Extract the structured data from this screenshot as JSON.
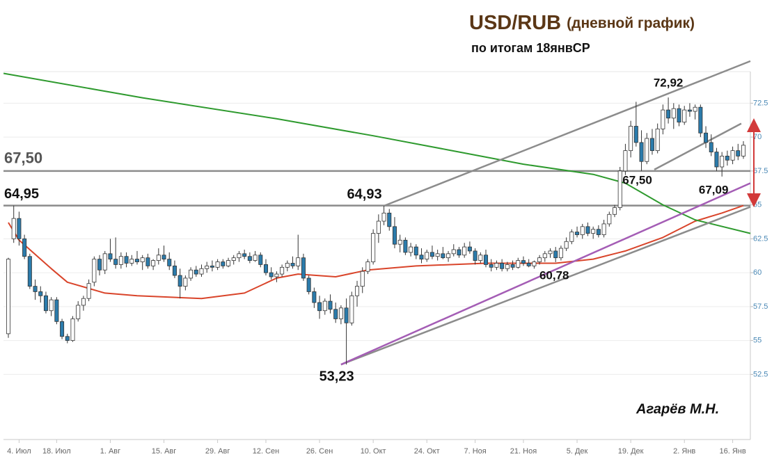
{
  "chart_data": {
    "type": "candlestick",
    "title": "USD/RUB",
    "title_suffix": "(дневной график)",
    "subtitle": "по итогам 18янвСР",
    "author": "Агарёв М.Н.",
    "up_color": "#ffffff",
    "down_color": "#2b7bab",
    "ylim": [
      47.7,
      75.8
    ],
    "yticks": [
      52.5,
      55,
      57.5,
      60,
      62.5,
      65,
      67.5,
      70,
      72.5
    ],
    "grid": true,
    "categories": [
      null,
      null,
      "4. Июл",
      null,
      null,
      null,
      null,
      null,
      null,
      "18. Июл",
      null,
      null,
      null,
      null,
      null,
      null,
      null,
      null,
      null,
      "1. Авг",
      null,
      null,
      null,
      null,
      null,
      null,
      null,
      null,
      null,
      "15. Авг",
      null,
      null,
      null,
      null,
      null,
      null,
      null,
      null,
      null,
      "29. Авг",
      null,
      null,
      null,
      null,
      null,
      null,
      null,
      null,
      "12. Сен",
      null,
      null,
      null,
      null,
      null,
      null,
      null,
      null,
      null,
      "26. Сен",
      null,
      null,
      null,
      null,
      null,
      null,
      null,
      null,
      null,
      "10. Окт",
      null,
      null,
      null,
      null,
      null,
      null,
      null,
      null,
      null,
      "24. Окт",
      null,
      null,
      null,
      null,
      null,
      null,
      null,
      null,
      "7. Ноя",
      null,
      null,
      null,
      null,
      null,
      null,
      null,
      null,
      "21. Ноя",
      null,
      null,
      null,
      null,
      null,
      null,
      null,
      null,
      null,
      "5. Дек",
      null,
      null,
      null,
      null,
      null,
      null,
      null,
      null,
      null,
      "19. Дек",
      null,
      null,
      null,
      null,
      null,
      null,
      null,
      null,
      null,
      "2. Янв",
      null,
      null,
      null,
      null,
      null,
      null,
      null,
      null,
      "16. Янв",
      null,
      null
    ],
    "ohlc": [
      [
        55.5,
        61.1,
        55.2,
        61.0
      ],
      [
        62.5,
        64.95,
        62.2,
        64.0
      ],
      [
        64.0,
        64.5,
        62.0,
        62.5
      ],
      [
        62.5,
        62.8,
        61.0,
        61.2
      ],
      [
        61.2,
        61.4,
        58.8,
        59.0
      ],
      [
        59.0,
        59.5,
        58.0,
        58.6
      ],
      [
        58.6,
        59.0,
        57.8,
        58.3
      ],
      [
        58.3,
        58.6,
        57.0,
        57.2
      ],
      [
        57.2,
        58.2,
        56.8,
        58.0
      ],
      [
        58.0,
        58.2,
        56.2,
        56.4
      ],
      [
        56.4,
        56.6,
        55.1,
        55.3
      ],
      [
        55.3,
        55.5,
        54.8,
        55.0
      ],
      [
        55.0,
        56.8,
        54.9,
        56.6
      ],
      [
        56.6,
        57.9,
        56.4,
        57.6
      ],
      [
        57.6,
        58.3,
        57.2,
        58.1
      ],
      [
        58.1,
        59.5,
        57.9,
        59.2
      ],
      [
        59.3,
        61.2,
        59.0,
        61.0
      ],
      [
        61.0,
        61.3,
        59.8,
        60.2
      ],
      [
        60.2,
        61.6,
        59.9,
        61.4
      ],
      [
        61.4,
        62.5,
        60.8,
        61.0
      ],
      [
        61.0,
        62.6,
        60.3,
        60.6
      ],
      [
        60.6,
        61.5,
        60.3,
        61.2
      ],
      [
        61.2,
        61.5,
        60.4,
        60.7
      ],
      [
        60.7,
        61.3,
        60.5,
        61.0
      ],
      [
        61.0,
        61.6,
        60.6,
        60.8
      ],
      [
        60.8,
        61.3,
        60.2,
        61.1
      ],
      [
        61.1,
        61.4,
        60.3,
        60.5
      ],
      [
        60.5,
        61.0,
        60.2,
        60.9
      ],
      [
        60.9,
        61.8,
        60.6,
        61.3
      ],
      [
        61.3,
        62.0,
        60.8,
        61.0
      ],
      [
        61.0,
        61.5,
        60.2,
        60.5
      ],
      [
        60.5,
        60.9,
        59.6,
        59.8
      ],
      [
        59.8,
        60.3,
        58.1,
        59.0
      ],
      [
        59.0,
        59.8,
        58.7,
        59.6
      ],
      [
        59.6,
        60.4,
        59.4,
        60.2
      ],
      [
        60.2,
        60.5,
        59.7,
        59.9
      ],
      [
        59.9,
        60.6,
        59.7,
        60.3
      ],
      [
        60.3,
        60.8,
        60.0,
        60.5
      ],
      [
        60.5,
        60.9,
        60.1,
        60.4
      ],
      [
        60.4,
        61.0,
        60.2,
        60.8
      ],
      [
        60.8,
        61.0,
        60.3,
        60.5
      ],
      [
        60.5,
        61.1,
        60.4,
        60.9
      ],
      [
        60.9,
        61.3,
        60.6,
        61.1
      ],
      [
        61.1,
        61.6,
        60.8,
        61.4
      ],
      [
        61.4,
        61.7,
        61.0,
        61.2
      ],
      [
        61.2,
        61.5,
        60.7,
        60.9
      ],
      [
        60.9,
        61.6,
        60.8,
        61.3
      ],
      [
        61.3,
        61.5,
        60.4,
        60.6
      ],
      [
        60.6,
        61.0,
        59.8,
        60.0
      ],
      [
        60.0,
        60.4,
        59.5,
        59.7
      ],
      [
        59.7,
        60.1,
        59.3,
        59.9
      ],
      [
        59.9,
        60.6,
        59.7,
        60.4
      ],
      [
        60.4,
        60.9,
        60.1,
        60.7
      ],
      [
        60.7,
        61.2,
        60.3,
        60.5
      ],
      [
        60.5,
        62.8,
        60.2,
        61.1
      ],
      [
        61.1,
        61.4,
        59.4,
        59.6
      ],
      [
        59.6,
        59.8,
        58.4,
        58.6
      ],
      [
        58.6,
        58.9,
        57.4,
        57.8
      ],
      [
        57.8,
        58.3,
        56.6,
        57.2
      ],
      [
        57.2,
        58.1,
        56.9,
        57.9
      ],
      [
        57.9,
        58.4,
        57.0,
        57.3
      ],
      [
        57.3,
        57.8,
        56.3,
        56.6
      ],
      [
        56.6,
        57.6,
        56.2,
        57.4
      ],
      [
        57.4,
        58.1,
        53.23,
        56.3
      ],
      [
        56.3,
        58.6,
        56.1,
        58.3
      ],
      [
        58.3,
        59.4,
        57.5,
        59.0
      ],
      [
        59.0,
        60.4,
        58.5,
        60.1
      ],
      [
        60.1,
        61.0,
        59.9,
        60.8
      ],
      [
        60.8,
        63.2,
        60.6,
        62.9
      ],
      [
        62.9,
        64.3,
        62.2,
        63.8
      ],
      [
        63.8,
        64.93,
        63.5,
        64.4
      ],
      [
        64.4,
        64.7,
        63.1,
        63.4
      ],
      [
        63.4,
        64.1,
        61.8,
        62.1
      ],
      [
        62.1,
        62.8,
        61.5,
        62.4
      ],
      [
        62.4,
        62.6,
        61.3,
        61.5
      ],
      [
        61.5,
        62.2,
        61.2,
        61.9
      ],
      [
        61.9,
        62.1,
        61.0,
        61.3
      ],
      [
        61.3,
        61.8,
        60.7,
        61.0
      ],
      [
        61.0,
        61.7,
        60.8,
        61.5
      ],
      [
        61.5,
        62.0,
        61.0,
        61.2
      ],
      [
        61.2,
        61.7,
        60.9,
        61.4
      ],
      [
        61.4,
        61.9,
        61.0,
        61.1
      ],
      [
        61.1,
        61.6,
        60.8,
        61.4
      ],
      [
        61.4,
        62.1,
        61.2,
        61.7
      ],
      [
        61.7,
        61.9,
        61.1,
        61.3
      ],
      [
        61.3,
        62.2,
        61.1,
        61.9
      ],
      [
        61.9,
        62.3,
        61.4,
        61.6
      ],
      [
        61.6,
        61.8,
        60.6,
        60.9
      ],
      [
        60.9,
        61.5,
        60.7,
        61.3
      ],
      [
        61.3,
        61.7,
        60.4,
        60.6
      ],
      [
        60.6,
        61.0,
        60.1,
        60.4
      ],
      [
        60.4,
        60.9,
        60.2,
        60.7
      ],
      [
        60.7,
        61.0,
        60.1,
        60.3
      ],
      [
        60.3,
        60.8,
        60.1,
        60.6
      ],
      [
        60.6,
        60.9,
        60.2,
        60.4
      ],
      [
        60.4,
        61.1,
        60.3,
        60.9
      ],
      [
        60.9,
        61.2,
        60.5,
        60.7
      ],
      [
        60.7,
        61.0,
        60.4,
        60.5
      ],
      [
        60.5,
        60.9,
        60.3,
        60.8
      ],
      [
        60.8,
        61.3,
        60.6,
        61.1
      ],
      [
        61.1,
        61.6,
        60.8,
        61.4
      ],
      [
        61.4,
        61.8,
        61.1,
        61.6
      ],
      [
        61.6,
        61.9,
        60.78,
        61.1
      ],
      [
        61.1,
        62.0,
        60.9,
        61.8
      ],
      [
        61.8,
        62.6,
        61.6,
        62.3
      ],
      [
        62.3,
        63.2,
        62.1,
        63.0
      ],
      [
        63.0,
        63.4,
        62.6,
        62.8
      ],
      [
        62.8,
        63.6,
        62.5,
        63.4
      ],
      [
        63.4,
        63.7,
        62.7,
        62.9
      ],
      [
        62.9,
        63.4,
        62.5,
        63.2
      ],
      [
        63.2,
        63.5,
        62.6,
        62.8
      ],
      [
        62.8,
        63.9,
        62.6,
        63.6
      ],
      [
        63.6,
        64.5,
        63.4,
        64.3
      ],
      [
        64.3,
        65.0,
        64.1,
        64.8
      ],
      [
        64.8,
        67.8,
        64.6,
        67.5
      ],
      [
        67.5,
        69.5,
        67.2,
        69.0
      ],
      [
        69.0,
        71.2,
        68.5,
        70.8
      ],
      [
        70.8,
        72.6,
        69.3,
        69.6
      ],
      [
        69.6,
        70.5,
        67.5,
        68.2
      ],
      [
        68.2,
        70.3,
        68.0,
        69.9
      ],
      [
        69.9,
        70.6,
        68.7,
        69.0
      ],
      [
        69.0,
        71.0,
        68.8,
        70.6
      ],
      [
        70.6,
        72.4,
        70.2,
        72.0
      ],
      [
        72.0,
        72.92,
        71.0,
        71.4
      ],
      [
        71.4,
        72.5,
        70.6,
        72.1
      ],
      [
        72.1,
        72.4,
        70.8,
        71.1
      ],
      [
        71.1,
        72.3,
        70.9,
        72.0
      ],
      [
        72.0,
        72.5,
        71.5,
        71.9
      ],
      [
        71.9,
        72.4,
        71.3,
        72.2
      ],
      [
        72.2,
        72.4,
        70.0,
        70.3
      ],
      [
        70.3,
        70.8,
        69.2,
        69.6
      ],
      [
        69.6,
        70.2,
        68.6,
        68.9
      ],
      [
        68.9,
        69.2,
        67.5,
        67.8
      ],
      [
        67.8,
        68.9,
        67.09,
        68.6
      ],
      [
        68.6,
        69.0,
        67.9,
        68.3
      ],
      [
        68.3,
        69.3,
        68.0,
        69.0
      ],
      [
        69.0,
        69.5,
        68.3,
        68.6
      ],
      [
        68.6,
        69.7,
        68.4,
        69.4
      ]
    ],
    "lines": [
      {
        "color": "#d9442a",
        "x": [
          0,
          2,
          8,
          11,
          18,
          24,
          36,
          44,
          50,
          54,
          61,
          67,
          76,
          89,
          102,
          109,
          115,
          122,
          128,
          133,
          137
        ],
        "values": [
          63.7,
          62.4,
          60.3,
          59.3,
          58.5,
          58.3,
          58.1,
          58.5,
          59.6,
          59.9,
          59.7,
          60.2,
          60.5,
          60.7,
          60.7,
          61.0,
          61.6,
          62.6,
          63.8,
          64.4,
          64.95
        ]
      },
      {
        "color": "#2e9a2e",
        "x": [
          -0.9,
          25,
          50,
          68,
          82,
          96,
          109,
          115,
          122,
          128,
          138.3
        ],
        "values": [
          74.7,
          72.9,
          71.35,
          70.1,
          69.05,
          68.0,
          67.25,
          66.6,
          65.0,
          63.9,
          62.9
        ]
      },
      {
        "color": "#8c8c8c",
        "x": [
          70,
          138.3
        ],
        "values": [
          64.93,
          75.6
        ]
      },
      {
        "color": "#8c8c8c",
        "x": [
          62,
          138.3
        ],
        "values": [
          53.23,
          64.85
        ]
      },
      {
        "color": "#a45db5",
        "x": [
          62,
          138.3
        ],
        "values": [
          53.23,
          66.6
        ]
      },
      {
        "color": "#8c8c8c",
        "x": [
          120.4,
          136.6
        ],
        "values": [
          67.6,
          71.0
        ]
      }
    ],
    "hlines": [
      {
        "value": 67.5,
        "label": "67,50",
        "color": "#8c8c8c"
      },
      {
        "value": 64.95,
        "label": "64,95",
        "color": "#8c8c8c"
      }
    ],
    "annotations": [
      {
        "text": "72,92",
        "value": 72.92,
        "x": 123
      },
      {
        "text": "64,93",
        "value": 64.93,
        "x": 70
      },
      {
        "text": "53,23",
        "value": 53.23,
        "x": 63
      },
      {
        "text": "67,50",
        "value": 67.5,
        "x": 118
      },
      {
        "text": "60,78",
        "value": 60.78,
        "x": 102
      },
      {
        "text": "67,09",
        "value": 67.09,
        "x": 133
      }
    ]
  }
}
